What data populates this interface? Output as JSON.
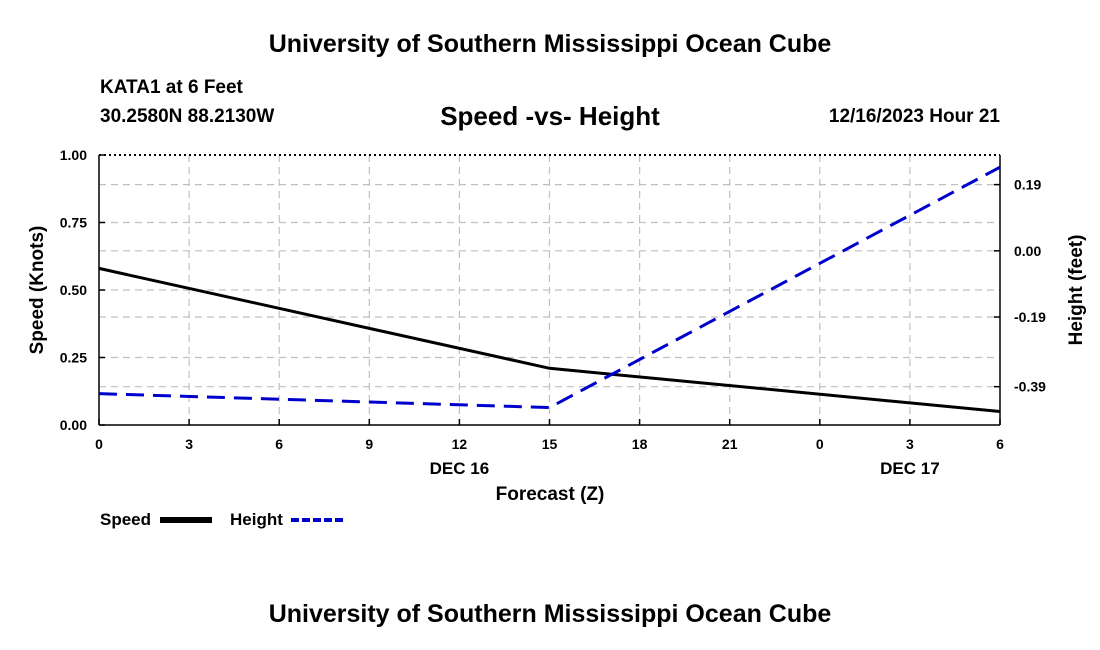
{
  "header": {
    "title_top": "University of Southern Mississippi Ocean Cube",
    "station": "KATA1 at 6 Feet",
    "coords": "30.2580N  88.2130W",
    "chart_title": "Speed -vs- Height",
    "datetime": "12/16/2023 Hour 21",
    "title_bottom": "University of Southern Mississippi Ocean Cube"
  },
  "colors": {
    "speed": "#000000",
    "height": "#0000cc",
    "grid": "#c0c0c0"
  },
  "legend": {
    "speed_label": "Speed",
    "height_label": "Height"
  },
  "chart_data": {
    "type": "line",
    "title": "Speed -vs- Height",
    "xlabel": "Forecast (Z)",
    "ylabel_left": "Speed (Knots)",
    "ylabel_right": "Height (feet)",
    "x_hours": [
      0,
      3,
      6,
      9,
      12,
      15,
      18,
      21,
      24,
      27,
      30
    ],
    "x_tick_labels": [
      "0",
      "3",
      "6",
      "9",
      "12",
      "15",
      "18",
      "21",
      "0",
      "3",
      "6"
    ],
    "date_labels": [
      {
        "label": "DEC 16",
        "at_hour": 12
      },
      {
        "label": "DEC 17",
        "at_hour": 27
      }
    ],
    "xlim": [
      0,
      30
    ],
    "ylim_left": [
      0,
      1.0
    ],
    "y_left_ticks": [
      "0.00",
      "0.25",
      "0.50",
      "0.75",
      "1.00"
    ],
    "y_left_tick_values": [
      0,
      0.25,
      0.5,
      0.75,
      1.0
    ],
    "ylim_right": [
      -0.5,
      0.275
    ],
    "y_right_ticks": [
      "-0.39",
      "-0.19",
      "0.00",
      "0.19"
    ],
    "y_right_tick_values": [
      -0.39,
      -0.19,
      0.0,
      0.19
    ],
    "series": [
      {
        "name": "Speed",
        "axis": "left",
        "style": "solid",
        "x": [
          0,
          15,
          30
        ],
        "values": [
          0.58,
          0.21,
          0.05
        ]
      },
      {
        "name": "Height",
        "axis": "right",
        "style": "dashed",
        "x": [
          0,
          15,
          30
        ],
        "values": [
          -0.41,
          -0.45,
          0.24
        ]
      }
    ]
  }
}
